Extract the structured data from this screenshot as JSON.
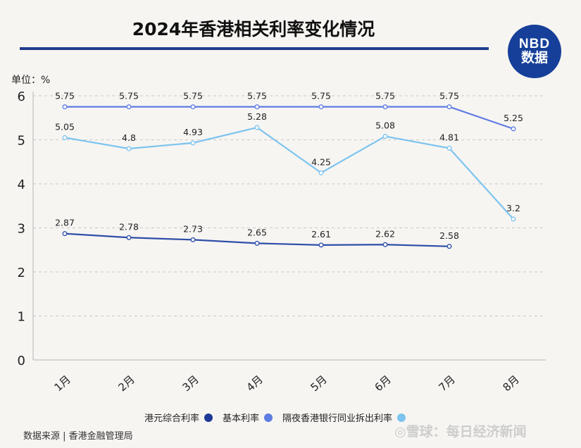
{
  "title": "2024年香港相关利率变化情况",
  "logo": {
    "line1": "NBD",
    "line2": "数据"
  },
  "unit_label": "单位：%",
  "source": "数据来源 | 香港金融管理局",
  "watermark": "◎雪球：每日经济新闻",
  "colors": {
    "title_rule": "#1f3d8f",
    "logo_bg": "#163f99",
    "hibor": "#2e4fa8",
    "prime": "#5e7ce2",
    "hkd_composite": "#7cc4ef"
  },
  "chart_data": {
    "type": "line",
    "categories": [
      "1月",
      "2月",
      "3月",
      "4月",
      "5月",
      "6月",
      "7月",
      "8月"
    ],
    "ylim": [
      0,
      6
    ],
    "yticks": [
      "0",
      "1",
      "2",
      "3",
      "4",
      "5",
      "6"
    ],
    "grid": true,
    "legend_position": "bottom",
    "series": [
      {
        "name": "港元综合利率",
        "values": [
          2.87,
          2.78,
          2.73,
          2.65,
          2.61,
          2.62,
          2.58,
          null
        ],
        "color": "#2e4fa8",
        "labels": [
          "2.87",
          "2.78",
          "2.73",
          "2.65",
          "2.61",
          "2.62",
          "2.58",
          ""
        ]
      },
      {
        "name": "基本利率",
        "values": [
          5.75,
          5.75,
          5.75,
          5.75,
          5.75,
          5.75,
          5.75,
          5.25
        ],
        "color": "#5e7ce2",
        "labels": [
          "5.75",
          "5.75",
          "5.75",
          "5.75",
          "5.75",
          "5.75",
          "5.75",
          "5.25"
        ]
      },
      {
        "name": "隔夜香港银行同业拆出利率",
        "values": [
          5.05,
          4.8,
          4.93,
          5.28,
          4.25,
          5.08,
          4.81,
          3.2
        ],
        "color": "#7cc4ef",
        "labels": [
          "5.05",
          "4.8",
          "4.93",
          "5.28",
          "4.25",
          "5.08",
          "4.81",
          "3.2"
        ]
      }
    ]
  }
}
